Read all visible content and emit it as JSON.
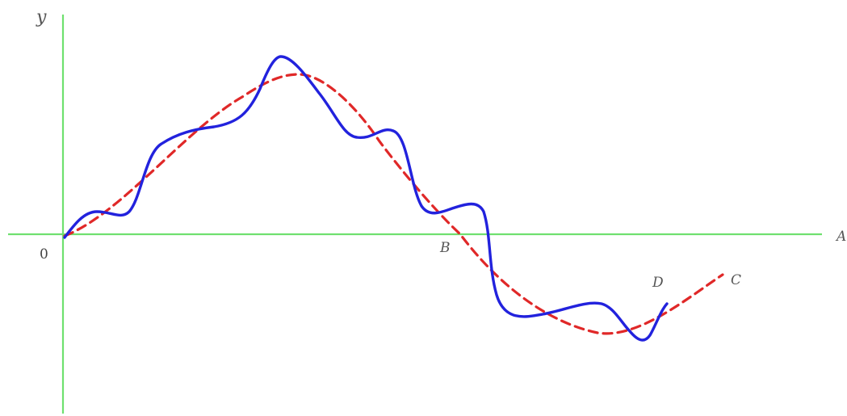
{
  "labels": {
    "y_axis": "y",
    "origin": "0",
    "point_b": "B",
    "point_d": "D",
    "point_c": "C",
    "x_axis": "A"
  },
  "colors": {
    "axes": "#6fe06f",
    "solid_curve": "#2222dd",
    "dashed_curve": "#e02828",
    "labels": "#555555"
  }
}
